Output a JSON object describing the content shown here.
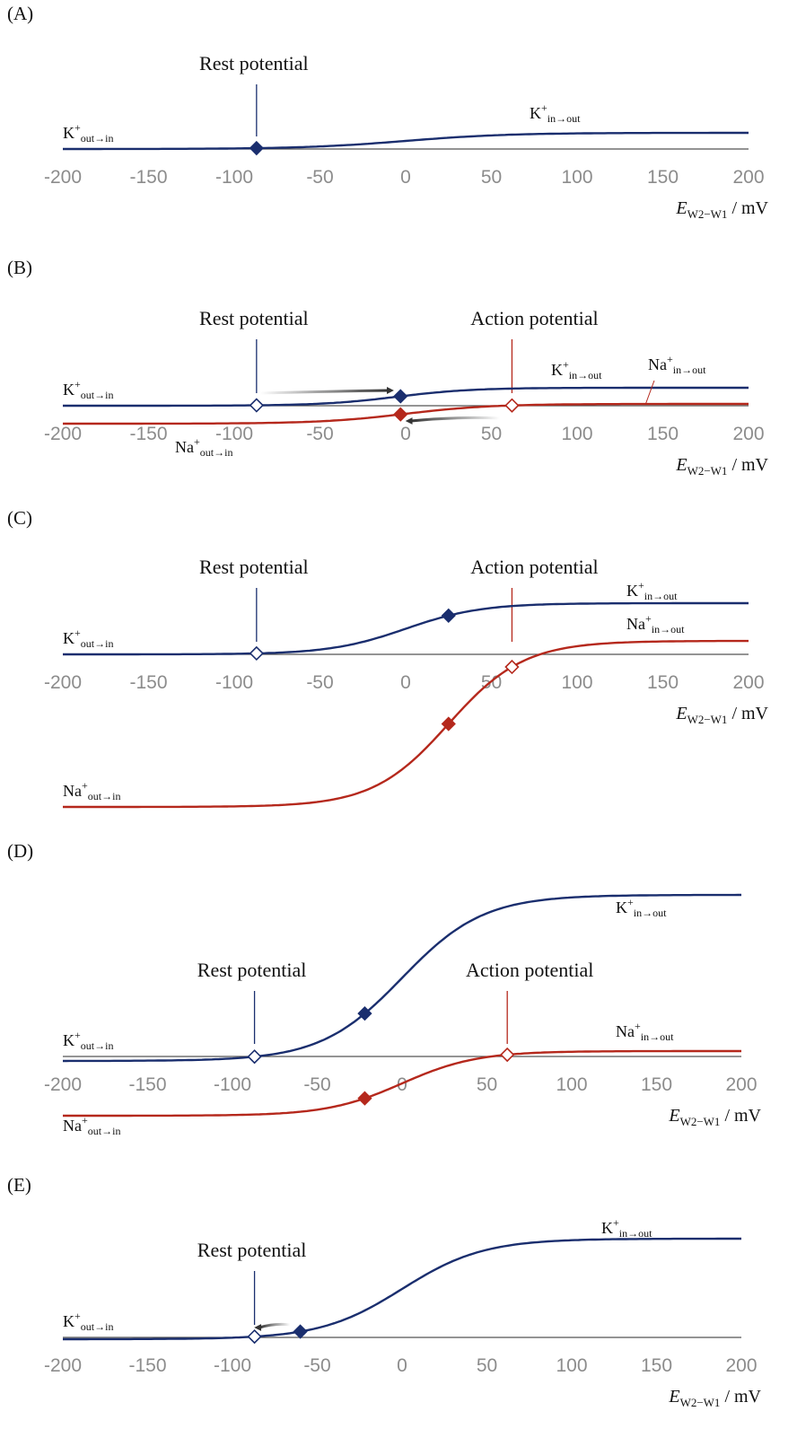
{
  "colors": {
    "k": "#1a2e6e",
    "na": "#b5281c",
    "axis": "#555555",
    "tick_text": "#8c8c8c",
    "arrow": "#333333"
  },
  "xlabel": {
    "italic": "E",
    "sub": "W2−W1",
    "unit": " / mV"
  },
  "chart_data": [
    {
      "panel": "(A)",
      "type": "line",
      "xlim": [
        -200,
        200
      ],
      "xticks": [
        -200,
        -150,
        -100,
        -50,
        0,
        50,
        100,
        150,
        200
      ],
      "annotations": [
        {
          "text": "Rest potential",
          "x": -87
        }
      ],
      "series": [
        {
          "ion": "K",
          "x0": 0,
          "slope": 30,
          "low": 0,
          "high": 18,
          "label_low": {
            "base": "K",
            "sup": "+",
            "sub": "out→in"
          },
          "label_high": {
            "base": "K",
            "sup": "+",
            "sub": "in→out"
          },
          "markers": [
            {
              "x": -87,
              "filled": true
            }
          ]
        }
      ],
      "arrows": []
    },
    {
      "panel": "(B)",
      "type": "line",
      "xlim": [
        -200,
        200
      ],
      "xticks": [
        -200,
        -150,
        -100,
        -50,
        0,
        50,
        100,
        150,
        200
      ],
      "annotations": [
        {
          "text": "Rest potential",
          "x": -87
        },
        {
          "text": "Action potential",
          "x": 62
        }
      ],
      "series": [
        {
          "ion": "K",
          "x0": -5,
          "slope": 22,
          "low": 0,
          "high": 20,
          "label_low": {
            "base": "K",
            "sup": "+",
            "sub": "out→in"
          },
          "label_high": {
            "base": "K",
            "sup": "+",
            "sub": "in→out"
          },
          "markers": [
            {
              "x": -87,
              "filled": false
            },
            {
              "x": -3,
              "filled": true
            }
          ]
        },
        {
          "ion": "Na",
          "x0": 0,
          "slope": 25,
          "low": -20,
          "high": 2,
          "label_low": {
            "base": "Na",
            "sup": "+",
            "sub": "out→in"
          },
          "label_high": {
            "base": "Na",
            "sup": "+",
            "sub": "in→out"
          },
          "markers": [
            {
              "x": 62,
              "filled": false
            },
            {
              "x": -3,
              "filled": true
            }
          ]
        }
      ],
      "arrows": [
        {
          "from": -85,
          "to": -10,
          "level": "k-upper"
        },
        {
          "from": 55,
          "to": 3,
          "level": "na-lower"
        }
      ]
    },
    {
      "panel": "(C)",
      "type": "line",
      "xlim": [
        -200,
        200
      ],
      "xticks": [
        -200,
        -150,
        -100,
        -50,
        0,
        50,
        100,
        150,
        200
      ],
      "annotations": [
        {
          "text": "Rest potential",
          "x": -87
        },
        {
          "text": "Action potential",
          "x": 62
        }
      ],
      "series": [
        {
          "ion": "K",
          "x0": 0,
          "slope": 22,
          "low": 0,
          "high": 57,
          "label_low": {
            "base": "K",
            "sup": "+",
            "sub": "out→in"
          },
          "label_high": {
            "base": "K",
            "sup": "+",
            "sub": "in→out"
          },
          "markers": [
            {
              "x": -87,
              "filled": false
            },
            {
              "x": 25,
              "filled": true
            }
          ]
        },
        {
          "ion": "Na",
          "x0": 25,
          "slope": 22,
          "low": -170,
          "high": 15,
          "label_low": {
            "base": "Na",
            "sup": "+",
            "sub": "out→in"
          },
          "label_high": {
            "base": "Na",
            "sup": "+",
            "sub": "in→out"
          },
          "markers": [
            {
              "x": 62,
              "filled": false
            },
            {
              "x": 25,
              "filled": true
            }
          ]
        }
      ],
      "arrows": []
    },
    {
      "panel": "(D)",
      "type": "line",
      "xlim": [
        -200,
        200
      ],
      "xticks": [
        -200,
        -150,
        -100,
        -50,
        0,
        50,
        100,
        150,
        200
      ],
      "annotations": [
        {
          "text": "Rest potential",
          "x": -87
        },
        {
          "text": "Action potential",
          "x": 62
        }
      ],
      "series": [
        {
          "ion": "K",
          "x0": 0,
          "slope": 24,
          "low": -5,
          "high": 180,
          "label_low": {
            "base": "K",
            "sup": "+",
            "sub": "out→in"
          },
          "label_high": {
            "base": "K",
            "sup": "+",
            "sub": "in→out"
          },
          "markers": [
            {
              "x": -87,
              "filled": false
            },
            {
              "x": -22,
              "filled": true
            }
          ]
        },
        {
          "ion": "Na",
          "x0": 0,
          "slope": 22,
          "low": -66,
          "high": 6,
          "label_low": {
            "base": "Na",
            "sup": "+",
            "sub": "out→in"
          },
          "label_high": {
            "base": "Na",
            "sup": "+",
            "sub": "in→out"
          },
          "markers": [
            {
              "x": 62,
              "filled": false
            },
            {
              "x": -22,
              "filled": true
            }
          ]
        }
      ],
      "arrows": []
    },
    {
      "panel": "(E)",
      "type": "line",
      "xlim": [
        -200,
        200
      ],
      "xticks": [
        -200,
        -150,
        -100,
        -50,
        0,
        50,
        100,
        150,
        200
      ],
      "annotations": [
        {
          "text": "Rest potential",
          "x": -87
        }
      ],
      "series": [
        {
          "ion": "K",
          "x0": 0,
          "slope": 24,
          "low": -2,
          "high": 110,
          "label_low": {
            "base": "K",
            "sup": "+",
            "sub": "out→in"
          },
          "label_high": {
            "base": "K",
            "sup": "+",
            "sub": "in→out"
          },
          "markers": [
            {
              "x": -87,
              "filled": false
            },
            {
              "x": -60,
              "filled": true
            }
          ]
        }
      ],
      "arrows": [
        {
          "from": -66,
          "to": -84,
          "level": "k-upper"
        }
      ]
    }
  ]
}
